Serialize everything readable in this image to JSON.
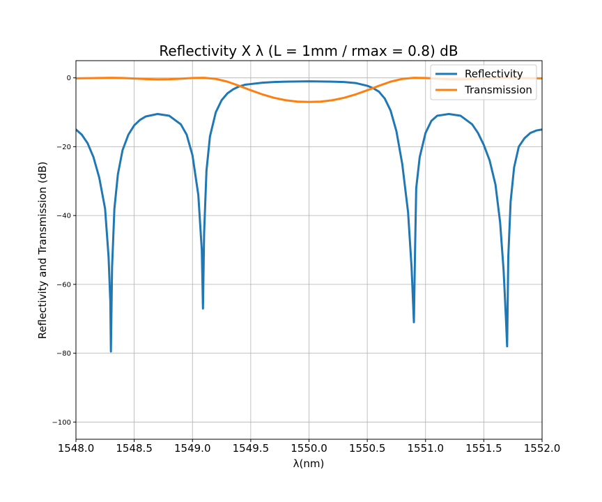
{
  "chart_data": {
    "type": "line",
    "title": "Reflectivity X λ (L = 1mm / rmax = 0.8) dB",
    "xlabel": "λ(nm)",
    "ylabel": "Reflectivity and Transmission (dB)",
    "xlim": [
      1548.0,
      1552.0
    ],
    "ylim": [
      -105,
      5
    ],
    "x_ticks": [
      "1548.0",
      "1548.5",
      "1549.0",
      "1549.5",
      "1550.0",
      "1550.5",
      "1551.0",
      "1551.5",
      "1552.0"
    ],
    "y_ticks": [
      "0",
      "−20",
      "−40",
      "−60",
      "−80",
      "−100"
    ],
    "grid": true,
    "legend_position": "top-right",
    "series": [
      {
        "name": "Reflectivity",
        "color": "#1f77b4",
        "x": [
          1548.0,
          1548.05,
          1548.1,
          1548.15,
          1548.2,
          1548.25,
          1548.28,
          1548.295,
          1548.3,
          1548.31,
          1548.33,
          1548.36,
          1548.4,
          1548.45,
          1548.5,
          1548.55,
          1548.6,
          1548.7,
          1548.8,
          1548.9,
          1548.95,
          1549.0,
          1549.05,
          1549.08,
          1549.09,
          1549.1,
          1549.12,
          1549.15,
          1549.2,
          1549.25,
          1549.3,
          1549.35,
          1549.4,
          1549.45,
          1549.5,
          1549.6,
          1549.7,
          1549.8,
          1549.9,
          1550.0,
          1550.1,
          1550.2,
          1550.3,
          1550.4,
          1550.5,
          1550.55,
          1550.6,
          1550.65,
          1550.7,
          1550.75,
          1550.8,
          1550.85,
          1550.88,
          1550.9,
          1550.91,
          1550.92,
          1550.95,
          1551.0,
          1551.05,
          1551.1,
          1551.2,
          1551.3,
          1551.4,
          1551.45,
          1551.5,
          1551.55,
          1551.6,
          1551.64,
          1551.67,
          1551.69,
          1551.7,
          1551.71,
          1551.73,
          1551.76,
          1551.8,
          1551.85,
          1551.9,
          1551.95,
          1552.0
        ],
        "values": [
          -15,
          -16.5,
          -19,
          -23,
          -29,
          -38,
          -52,
          -65,
          -79.5,
          -55,
          -38,
          -28,
          -21,
          -16.5,
          -13.8,
          -12.2,
          -11.2,
          -10.5,
          -11,
          -13.5,
          -16.5,
          -22.5,
          -34,
          -50,
          -67,
          -45,
          -27,
          -17,
          -10,
          -6.5,
          -4.5,
          -3.3,
          -2.5,
          -2,
          -1.8,
          -1.4,
          -1.2,
          -1.1,
          -1.05,
          -1.0,
          -1.05,
          -1.1,
          -1.2,
          -1.5,
          -2.3,
          -3.0,
          -4.0,
          -6.0,
          -9.5,
          -15.5,
          -25,
          -39,
          -55,
          -71,
          -50,
          -32,
          -23,
          -16,
          -12.5,
          -11,
          -10.5,
          -11,
          -13.5,
          -16,
          -19.5,
          -24,
          -31,
          -42,
          -56,
          -70,
          -78,
          -52,
          -36,
          -26,
          -20,
          -17.5,
          -16,
          -15.3,
          -15
        ]
      },
      {
        "name": "Transmission",
        "color": "#ff7f0e",
        "x": [
          1548.0,
          1548.1,
          1548.2,
          1548.3,
          1548.4,
          1548.5,
          1548.6,
          1548.7,
          1548.8,
          1548.9,
          1549.0,
          1549.1,
          1549.2,
          1549.3,
          1549.4,
          1549.5,
          1549.6,
          1549.7,
          1549.8,
          1549.9,
          1550.0,
          1550.1,
          1550.2,
          1550.3,
          1550.4,
          1550.5,
          1550.6,
          1550.7,
          1550.8,
          1550.9,
          1551.0,
          1551.1,
          1551.2,
          1551.3,
          1551.4,
          1551.5,
          1551.6,
          1551.7,
          1551.8,
          1551.9,
          1552.0
        ],
        "values": [
          -0.15,
          -0.1,
          -0.05,
          0,
          -0.05,
          -0.2,
          -0.35,
          -0.45,
          -0.4,
          -0.25,
          -0.05,
          0,
          -0.3,
          -1.1,
          -2.3,
          -3.6,
          -4.8,
          -5.8,
          -6.5,
          -6.9,
          -7.0,
          -6.9,
          -6.5,
          -5.8,
          -4.8,
          -3.6,
          -2.3,
          -1.1,
          -0.3,
          0,
          -0.05,
          -0.25,
          -0.4,
          -0.45,
          -0.35,
          -0.2,
          -0.05,
          0,
          -0.05,
          -0.1,
          -0.15
        ]
      }
    ]
  }
}
